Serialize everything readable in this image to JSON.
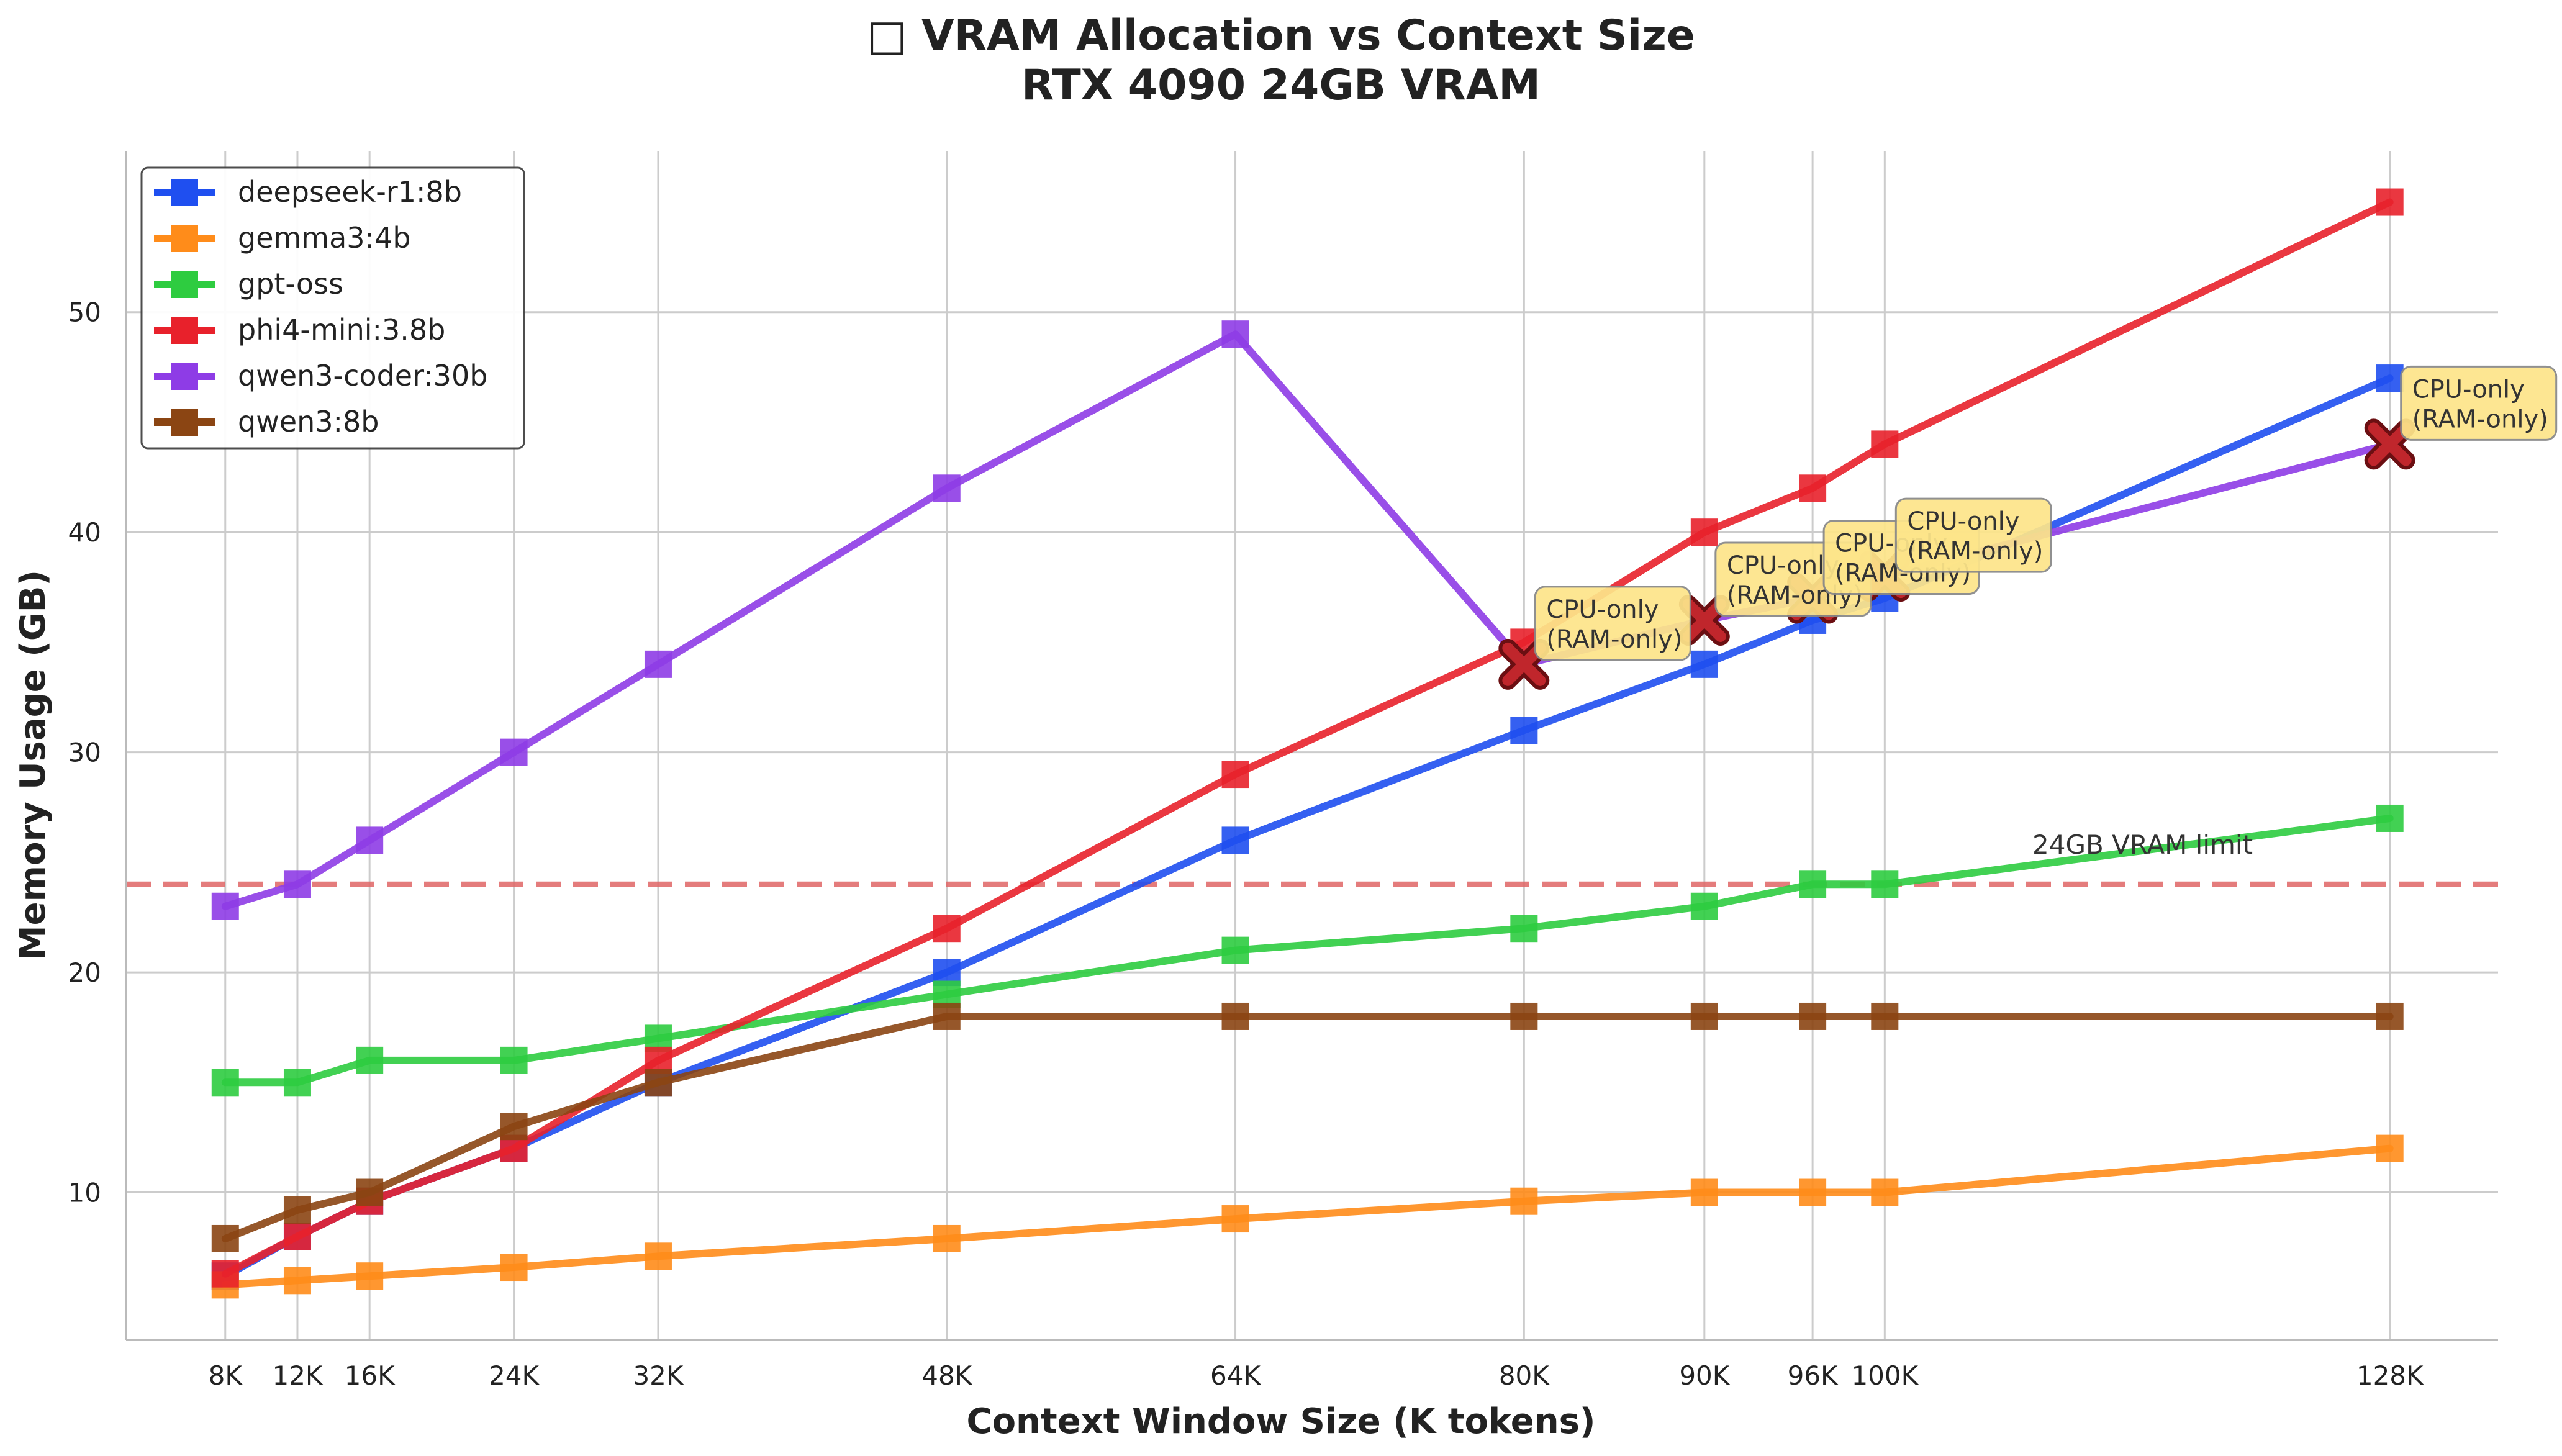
{
  "chart_data": {
    "type": "line",
    "title": "□ VRAM Allocation vs Context Size",
    "subtitle": "RTX 4090 24GB VRAM",
    "xlabel": "Context Window Size (K tokens)",
    "ylabel": "Memory Usage (GB)",
    "x": [
      8,
      12,
      16,
      24,
      32,
      48,
      64,
      80,
      90,
      96,
      100,
      128
    ],
    "x_tick_labels": [
      "8K",
      "12K",
      "16K",
      "24K",
      "32K",
      "48K",
      "64K",
      "80K",
      "90K",
      "96K",
      "100K",
      "128K"
    ],
    "xlim": [
      2.5,
      134
    ],
    "ylim": [
      3.3,
      57.3
    ],
    "y_ticks": [
      10,
      20,
      30,
      40,
      50
    ],
    "grid": true,
    "legend_position": "top-left",
    "series": [
      {
        "name": "deepseek-r1:8b",
        "color": "#1f4ff0",
        "values": [
          6.2,
          8.0,
          9.6,
          12.0,
          15.0,
          20.0,
          26.0,
          31.0,
          34.0,
          36.0,
          37.0,
          47.0
        ]
      },
      {
        "name": "gemma3:4b",
        "color": "#ff8c1a",
        "values": [
          5.8,
          6.0,
          6.2,
          6.6,
          7.1,
          7.9,
          8.8,
          9.6,
          10.0,
          10.0,
          10.0,
          12.0
        ]
      },
      {
        "name": "gpt-oss",
        "color": "#2ecc40",
        "values": [
          15.0,
          15.0,
          16.0,
          16.0,
          17.0,
          19.0,
          21.0,
          22.0,
          23.0,
          24.0,
          24.0,
          27.0
        ]
      },
      {
        "name": "phi4-mini:3.8b",
        "color": "#e8212b",
        "values": [
          6.3,
          8.0,
          9.6,
          12.0,
          16.0,
          22.0,
          29.0,
          35.0,
          40.0,
          42.0,
          44.0,
          55.0
        ]
      },
      {
        "name": "qwen3-coder:30b",
        "color": "#8e3ce6",
        "values": [
          23.0,
          24.0,
          26.0,
          30.0,
          34.0,
          42.0,
          49.0,
          34.0,
          36.0,
          37.0,
          38.0,
          44.0
        ]
      },
      {
        "name": "qwen3:8b",
        "color": "#8b4513",
        "values": [
          7.9,
          9.2,
          10.0,
          13.0,
          15.0,
          18.0,
          18.0,
          18.0,
          18.0,
          18.0,
          18.0,
          18.0
        ]
      }
    ],
    "reference_line": {
      "y": 24,
      "label": "24GB VRAM limit",
      "color": "#e06666"
    },
    "cpu_only_markers": [
      {
        "x": 80,
        "y": 34,
        "label_line1": "CPU-only",
        "label_line2": "(RAM-only)"
      },
      {
        "x": 90,
        "y": 36,
        "label_line1": "CPU-only",
        "label_line2": "(RAM-only)"
      },
      {
        "x": 96,
        "y": 37,
        "label_line1": "CPU-only",
        "label_line2": "(RAM-only)"
      },
      {
        "x": 100,
        "y": 38,
        "label_line1": "CPU-only",
        "label_line2": "(RAM-only)"
      },
      {
        "x": 128,
        "y": 44,
        "label_line1": "CPU-only",
        "label_line2": "(RAM-only)"
      }
    ]
  }
}
